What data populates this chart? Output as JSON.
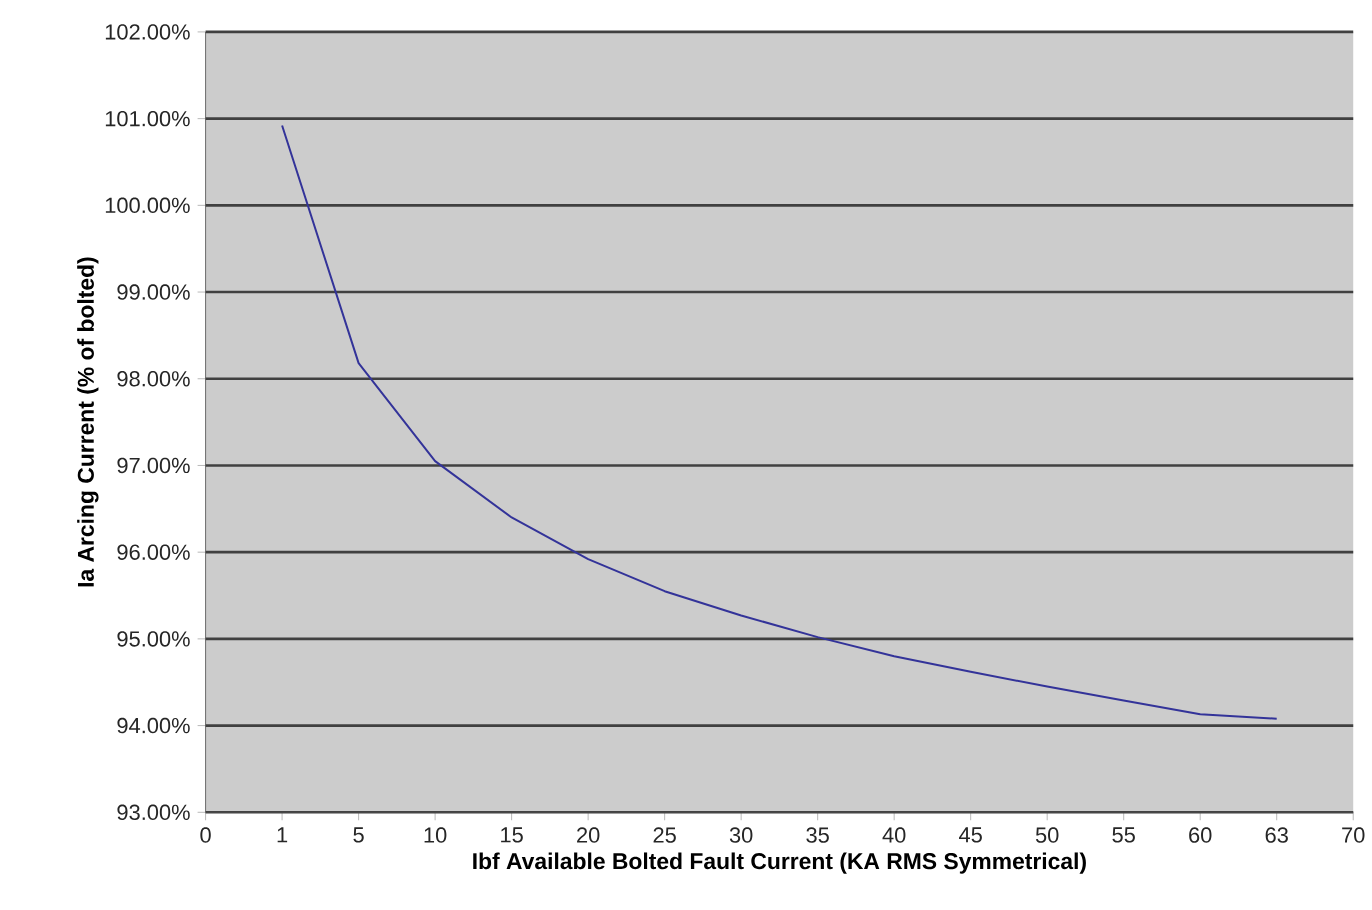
{
  "chart_data": {
    "type": "line",
    "xlabel": "Ibf Available Bolted Fault Current (KA RMS Symmetrical)",
    "ylabel": "Ia Arcing Current (% of bolted)",
    "categories": [
      "0",
      "1",
      "5",
      "10",
      "15",
      "20",
      "25",
      "30",
      "35",
      "40",
      "45",
      "50",
      "55",
      "60",
      "63",
      "70"
    ],
    "series": [
      {
        "color": "#333399",
        "values": [
          null,
          100.92,
          98.18,
          97.05,
          96.4,
          95.92,
          95.55,
          95.27,
          95.02,
          94.8,
          94.62,
          94.45,
          94.29,
          94.13,
          94.08,
          null
        ]
      }
    ],
    "ylim": [
      93,
      102
    ],
    "yticks": [
      {
        "value": 93,
        "label": "93.00%"
      },
      {
        "value": 94,
        "label": "94.00%"
      },
      {
        "value": 95,
        "label": "95.00%"
      },
      {
        "value": 96,
        "label": "96.00%"
      },
      {
        "value": 97,
        "label": "97.00%"
      },
      {
        "value": 98,
        "label": "98.00%"
      },
      {
        "value": 99,
        "label": "99.00%"
      },
      {
        "value": 100,
        "label": "100.00%"
      },
      {
        "value": 101,
        "label": "101.00%"
      },
      {
        "value": 102,
        "label": "102.00%"
      }
    ],
    "grid": "y",
    "marker": "none",
    "line_style": "solid"
  }
}
